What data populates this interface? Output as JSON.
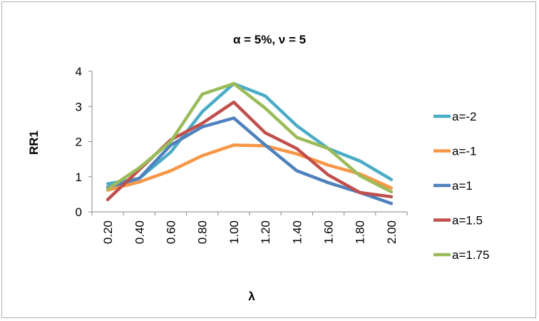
{
  "chart_data": {
    "type": "line",
    "title": "α = 5%, ν = 5",
    "xlabel": "λ",
    "ylabel": "RR1",
    "categories": [
      "0.20",
      "0.40",
      "0.60",
      "0.80",
      "1.00",
      "1.20",
      "1.40",
      "1.60",
      "1.80",
      "2.00"
    ],
    "ylim": [
      0,
      4
    ],
    "yticks": [
      "0",
      "1",
      "2",
      "3",
      "4"
    ],
    "grid": false,
    "legend_position": "right",
    "series": [
      {
        "name": "a=-2",
        "color": "#4BACC6",
        "values": [
          0.8,
          0.95,
          1.7,
          2.85,
          3.65,
          3.3,
          2.45,
          1.8,
          1.45,
          0.92
        ]
      },
      {
        "name": "a=-1",
        "color": "#F79646",
        "values": [
          0.62,
          0.85,
          1.17,
          1.6,
          1.9,
          1.88,
          1.65,
          1.33,
          1.08,
          0.68
        ]
      },
      {
        "name": "a=1",
        "color": "#4F81BD",
        "values": [
          0.7,
          0.95,
          1.9,
          2.42,
          2.67,
          1.9,
          1.17,
          0.83,
          0.55,
          0.24
        ]
      },
      {
        "name": "a=1.5",
        "color": "#C0504D",
        "values": [
          0.35,
          1.2,
          2.05,
          2.52,
          3.12,
          2.25,
          1.8,
          1.05,
          0.55,
          0.43
        ]
      },
      {
        "name": "a=1.75",
        "color": "#9BBB59",
        "values": [
          0.65,
          1.25,
          2.0,
          3.35,
          3.65,
          2.95,
          2.12,
          1.8,
          1.03,
          0.57
        ]
      }
    ]
  }
}
